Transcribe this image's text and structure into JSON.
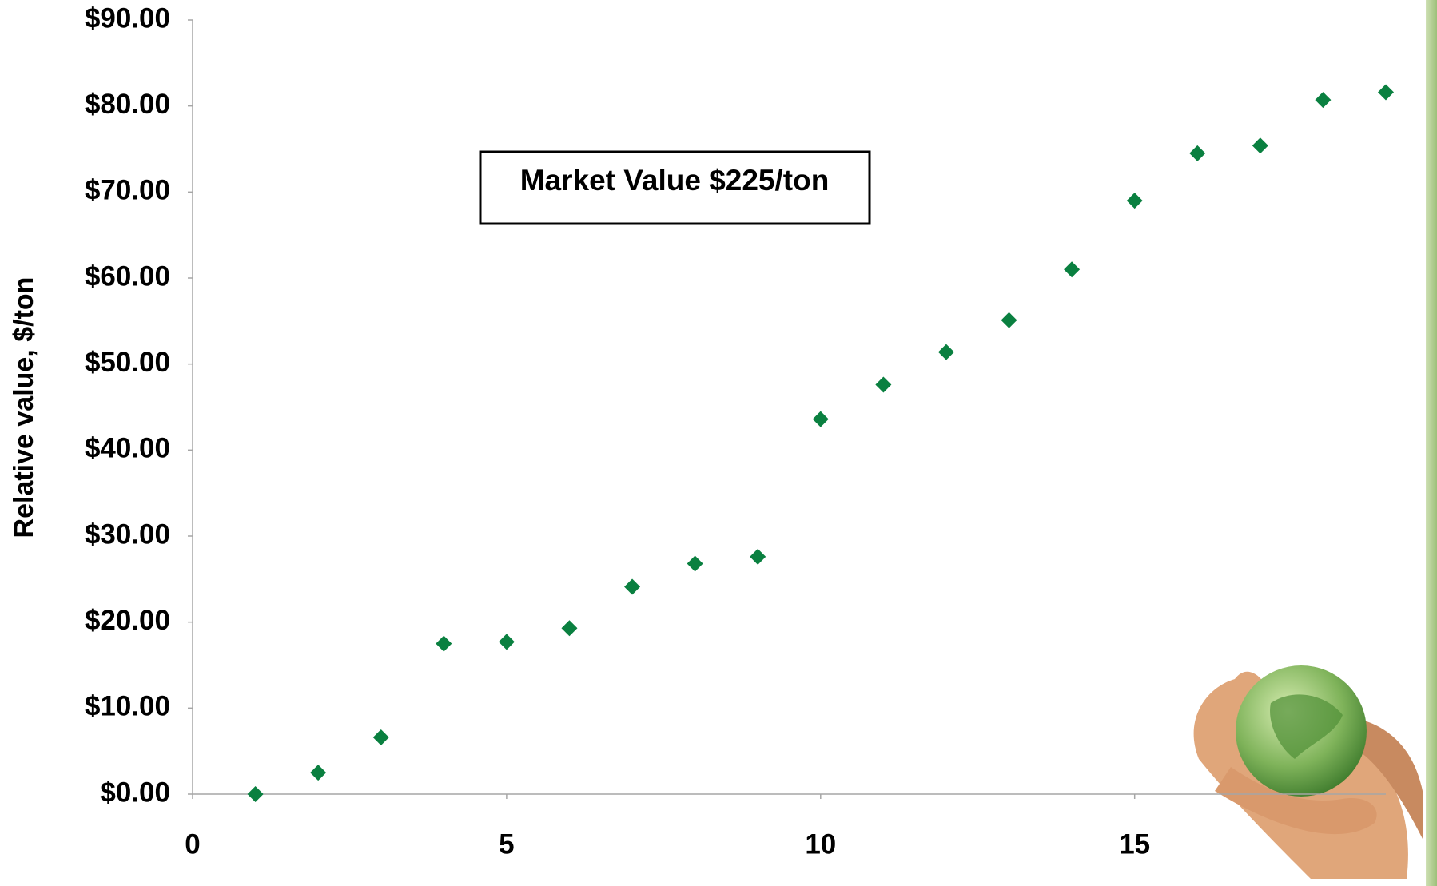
{
  "chart_data": {
    "type": "scatter",
    "y_label": "Relative value, $/ton",
    "annotation": "Market Value $225/ton",
    "x": [
      1,
      2,
      3,
      4,
      5,
      6,
      7,
      8,
      9,
      10,
      11,
      12,
      13,
      14,
      15,
      16,
      17,
      18,
      19
    ],
    "series": [
      {
        "color": "#0a8040",
        "values": [
          0,
          2.5,
          6.6,
          17.5,
          17.7,
          19.3,
          24.1,
          26.8,
          27.6,
          43.6,
          47.6,
          51.4,
          55.1,
          61.0,
          69.0,
          74.5,
          75.4,
          80.7,
          81.6
        ]
      }
    ],
    "xlim": [
      0,
      19
    ],
    "xticks": [
      0,
      5,
      10,
      15
    ],
    "ylim": [
      0,
      90
    ],
    "yticks": [
      {
        "value": 0,
        "label": "$0.00"
      },
      {
        "value": 10,
        "label": "$10.00"
      },
      {
        "value": 20,
        "label": "$20.00"
      },
      {
        "value": 30,
        "label": "$30.00"
      },
      {
        "value": 40,
        "label": "$40.00"
      },
      {
        "value": 50,
        "label": "$50.00"
      },
      {
        "value": 60,
        "label": "$60.00"
      },
      {
        "value": 70,
        "label": "$70.00"
      },
      {
        "value": 80,
        "label": "$80.00"
      },
      {
        "value": 90,
        "label": "$90.00"
      }
    ]
  }
}
